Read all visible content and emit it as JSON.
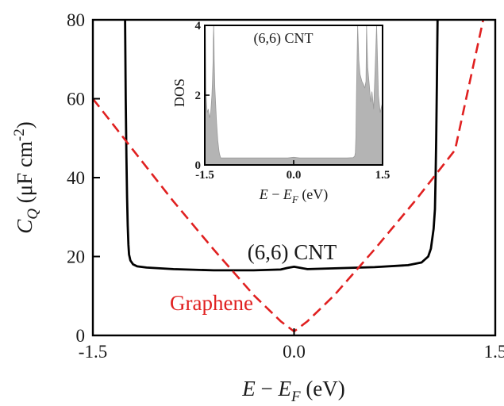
{
  "chart_data": [
    {
      "type": "line",
      "xlabel": "E − E_F (eV)",
      "ylabel": "C_Q (µF cm⁻²)",
      "xlim": [
        -1.5,
        1.5
      ],
      "ylim": [
        0,
        80
      ],
      "x_ticks": [
        "-1.5",
        "0.0",
        "1.5"
      ],
      "y_ticks": [
        "0",
        "20",
        "40",
        "60",
        "80"
      ],
      "grid": false,
      "annotations": [
        "(6,6) CNT",
        "Graphene"
      ],
      "series": [
        {
          "name": "(6,6) CNT",
          "color": "#000000",
          "style": "solid",
          "x": [
            -1.26,
            -1.255,
            -1.25,
            -1.245,
            -1.24,
            -1.235,
            -1.23,
            -1.22,
            -1.2,
            -1.17,
            -1.1,
            -0.9,
            -0.6,
            -0.3,
            -0.1,
            -0.05,
            0.0,
            0.05,
            0.1,
            0.3,
            0.6,
            0.85,
            0.95,
            1.0,
            1.02,
            1.04,
            1.05,
            1.055,
            1.06,
            1.065,
            1.07
          ],
          "y": [
            80,
            60,
            45,
            35,
            28,
            23,
            20.5,
            19,
            18,
            17.5,
            17.2,
            16.8,
            16.5,
            16.5,
            16.7,
            17.1,
            17.4,
            17.1,
            16.8,
            17.0,
            17.3,
            17.8,
            18.5,
            20,
            22,
            27,
            32,
            40,
            50,
            65,
            80
          ]
        },
        {
          "name": "Graphene",
          "color": "#e02020",
          "style": "dashed",
          "x": [
            -1.5,
            -1.2,
            -0.9,
            -0.6,
            -0.3,
            -0.1,
            0.0,
            0.1,
            0.3,
            0.6,
            0.9,
            1.2,
            1.41
          ],
          "y": [
            60,
            47,
            34,
            21.8,
            10.2,
            3.6,
            1,
            3.6,
            10.2,
            21.8,
            34,
            47,
            80
          ]
        }
      ]
    },
    {
      "type": "area",
      "title": "(6,6) CNT",
      "xlabel": "E − E_F (eV)",
      "ylabel": "DOS",
      "xlim": [
        -1.5,
        1.5
      ],
      "ylim": [
        0,
        4
      ],
      "x_ticks": [
        "-1.5",
        "0.0",
        "1.5"
      ],
      "y_ticks": [
        "0",
        "2",
        "4"
      ],
      "fill_color": "#b4b4b4",
      "series": [
        {
          "x": [
            -1.5,
            -1.49,
            -1.48,
            -1.46,
            -1.44,
            -1.42,
            -1.4,
            -1.38,
            -1.37,
            -1.36,
            -1.355,
            -1.35,
            -1.345,
            -1.34,
            -1.33,
            -1.3,
            -1.28,
            -1.26,
            -1.25,
            -1.24,
            -1.235,
            -1.23,
            -1.2,
            -1.0,
            -0.5,
            -0.1,
            0.0,
            0.1,
            0.5,
            0.9,
            1.0,
            1.03,
            1.04,
            1.05,
            1.06,
            1.08,
            1.1,
            1.12,
            1.15,
            1.18,
            1.2,
            1.22,
            1.23,
            1.25,
            1.28,
            1.3,
            1.32,
            1.35,
            1.38,
            1.4,
            1.43,
            1.46,
            1.5
          ],
          "y": [
            4,
            4,
            2.1,
            1.5,
            1.6,
            1.35,
            1.5,
            2.0,
            2.4,
            3.0,
            3.6,
            4.0,
            3.6,
            3.0,
            2.2,
            1.2,
            0.7,
            0.4,
            0.3,
            0.25,
            0.22,
            0.2,
            0.2,
            0.2,
            0.2,
            0.2,
            0.22,
            0.2,
            0.2,
            0.2,
            0.21,
            0.25,
            0.35,
            0.8,
            2.0,
            4.0,
            3.0,
            2.6,
            2.4,
            2.3,
            2.2,
            2.4,
            4.0,
            2.8,
            2.2,
            1.8,
            2.1,
            1.6,
            3.0,
            4.0,
            2.0,
            1.5,
            1.8
          ]
        }
      ]
    }
  ]
}
